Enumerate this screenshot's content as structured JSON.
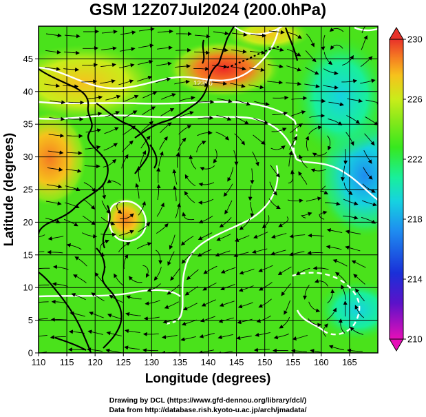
{
  "title": "GSM 12Z07Jul2024 (200.0hPa)",
  "x_axis": {
    "label": "Longitude (degrees)",
    "ticks": [
      "110",
      "115",
      "120",
      "125",
      "130",
      "135",
      "140",
      "145",
      "150",
      "155",
      "160",
      "165"
    ]
  },
  "y_axis": {
    "label": "Latitude (degrees)",
    "ticks": [
      "0",
      "5",
      "10",
      "15",
      "20",
      "25",
      "30",
      "35",
      "40",
      "45"
    ]
  },
  "colorbar": {
    "ticks": [
      "210",
      "214",
      "218",
      "222",
      "226",
      "230"
    ],
    "colors": [
      "#e60fb8",
      "#5b12c9",
      "#1a2fd8",
      "#1e8cf0",
      "#16d2e0",
      "#19ef9a",
      "#37e81e",
      "#7fe81a",
      "#c9ec1a",
      "#f6c21c",
      "#f57c22",
      "#e8322a"
    ]
  },
  "contour_label": "12360",
  "credits": {
    "line1": "Drawing by DCL (https://www.gfd-dennou.org/library/dcl/)",
    "line2": "Data from http://database.rish.kyoto-u.ac.jp/arch/jmadata/"
  },
  "map": {
    "lon_range": [
      110,
      170
    ],
    "lat_range": [
      0,
      50
    ],
    "base_color": "#33e01a",
    "warm_patches": [
      {
        "lon": 141,
        "lat": 44.5,
        "color": "#f04a20"
      },
      {
        "lon": 112,
        "lat": 32,
        "color": "#f5a01c"
      },
      {
        "lon": 125,
        "lat": 23,
        "color": "#f5a01c"
      },
      {
        "lon": 115,
        "lat": 44,
        "color": "#f7c51c"
      }
    ],
    "cool_patches": [
      {
        "lon": 165,
        "lat": 33,
        "color": "#2ab4e8"
      },
      {
        "lon": 160,
        "lat": 45,
        "color": "#2ad0c8"
      },
      {
        "lon": 162,
        "lat": 8,
        "color": "#2ad8a0"
      }
    ]
  }
}
